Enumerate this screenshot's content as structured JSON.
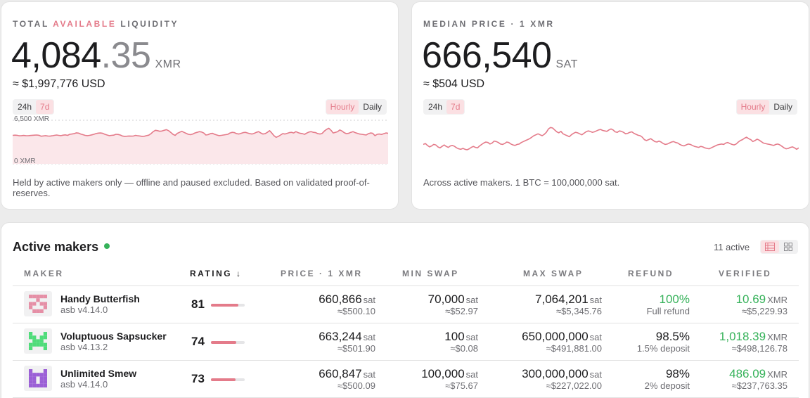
{
  "liquidity": {
    "label_pre": "TOTAL ",
    "label_hl": "AVAILABLE",
    "label_post": " LIQUIDITY",
    "int_part": "4,084",
    "dec_part": ".35",
    "unit": "XMR",
    "usd": "≈ $1,997,776 USD",
    "range_24h": "24h",
    "range_7d": "7d",
    "gran_hourly": "Hourly",
    "gran_daily": "Daily",
    "y_top": "6,500 XMR",
    "y_bottom": "0 XMR",
    "note": "Held by active makers only — offline and paused excluded. Based on validated proof-of-reserves.",
    "series": [
      4250,
      4280,
      4260,
      4180,
      4200,
      4240,
      4200,
      4190,
      4230,
      4260,
      4280,
      4300,
      4260,
      4120,
      4160,
      4200,
      4150,
      4130,
      4180,
      4250,
      4300,
      4250,
      4200,
      4280,
      4320,
      4250,
      4400,
      4450,
      4500,
      4620,
      4580,
      4450,
      4350,
      4250,
      4200,
      4250,
      4320,
      4400,
      4520,
      4580,
      4600,
      4550,
      4400,
      4300,
      4200,
      4250,
      4280,
      4400,
      4380,
      4300,
      4150,
      4100,
      4120,
      4150,
      4130,
      4150,
      4250,
      4180,
      4150,
      4100,
      4120,
      4200,
      4280,
      4500,
      4800,
      5000,
      4950,
      4850,
      4900,
      5000,
      5100,
      4950,
      4700,
      4400,
      4250,
      4550,
      4700,
      4850,
      4700,
      4550,
      4400,
      4350,
      4450,
      4600,
      4700,
      4800,
      4750,
      4600,
      4300,
      4350,
      4500,
      4550,
      4400,
      4300,
      4200,
      4250,
      4300,
      4350,
      4400,
      4600,
      4700,
      4650,
      4500,
      4450,
      4550,
      4650,
      4700,
      4600,
      4500,
      4450,
      4550,
      4700,
      4800,
      4600,
      4450,
      4500,
      4700,
      4950,
      4600,
      4200,
      3950,
      4100,
      4300,
      4500,
      4450,
      4550,
      4650,
      4700,
      4600,
      4800,
      4650,
      4550,
      4500,
      4400,
      4600,
      4750,
      4800,
      4700,
      4650,
      4500,
      4450,
      4550,
      4900,
      5150,
      5300,
      5000,
      4600,
      4700,
      4800,
      5050,
      4900,
      4650,
      4500,
      4550,
      4700,
      4800,
      4650,
      4550,
      4450,
      4400,
      4350,
      4300,
      4500,
      4600,
      4550,
      4200,
      4400,
      4450,
      4380,
      4500,
      4600,
      4550
    ]
  },
  "price": {
    "label": "MEDIAN PRICE · 1 XMR",
    "value": "666,540",
    "unit": "SAT",
    "usd": "≈ $504 USD",
    "range_24h": "24h",
    "range_7d": "7d",
    "gran_hourly": "Hourly",
    "gran_daily": "Daily",
    "note": "Across active makers. 1 BTC = 100,000,000 sat.",
    "series": [
      40,
      42,
      38,
      35,
      37,
      40,
      39,
      35,
      33,
      36,
      39,
      36,
      34,
      37,
      38,
      36,
      33,
      31,
      30,
      32,
      30,
      29,
      31,
      34,
      36,
      34,
      33,
      37,
      40,
      43,
      45,
      44,
      41,
      43,
      47,
      46,
      44,
      41,
      40,
      42,
      45,
      44,
      41,
      39,
      38,
      40,
      41,
      44,
      46,
      48,
      50,
      52,
      55,
      58,
      60,
      62,
      60,
      58,
      61,
      65,
      72,
      75,
      74,
      70,
      66,
      64,
      67,
      62,
      60,
      58,
      56,
      60,
      63,
      65,
      64,
      62,
      60,
      63,
      66,
      68,
      67,
      65,
      66,
      68,
      70,
      71,
      69,
      68,
      67,
      70,
      72,
      70,
      66,
      65,
      68,
      67,
      65,
      62,
      63,
      65,
      66,
      63,
      61,
      59,
      58,
      55,
      50,
      48,
      50,
      52,
      49,
      46,
      45,
      47,
      45,
      42,
      40,
      41,
      43,
      45,
      46,
      44,
      43,
      40,
      38,
      37,
      39,
      41,
      40,
      38,
      36,
      35,
      34,
      36,
      35,
      33,
      32,
      31,
      33,
      35,
      37,
      39,
      40,
      41,
      40,
      43,
      44,
      42,
      40,
      39,
      41,
      45,
      48,
      50,
      53,
      55,
      52,
      50,
      46,
      48,
      51,
      49,
      46,
      43,
      42,
      41,
      40,
      39,
      38,
      40,
      41,
      39,
      36,
      33,
      31,
      32,
      34,
      35,
      33,
      30,
      33
    ]
  },
  "makers": {
    "title": "Active makers",
    "count": "11 active",
    "columns": {
      "maker": "MAKER",
      "rating": "RATING",
      "sort_arrow": "↓",
      "price": "PRICE · 1 XMR",
      "min": "MIN SWAP",
      "max": "MAX SWAP",
      "refund": "REFUND",
      "verified": "VERIFIED"
    },
    "rows": [
      {
        "name": "Handy Butterfish",
        "version": "asb v4.14.0",
        "rating": "81",
        "rating_frac": 0.81,
        "avatar_color": "#e58fa6",
        "price": "660,866",
        "price_unit": "sat",
        "price_usd": "≈$500.10",
        "min": "70,000",
        "min_unit": "sat",
        "min_usd": "≈$52.97",
        "max": "7,064,201",
        "max_unit": "sat",
        "max_usd": "≈$5,345.76",
        "refund": "100%",
        "refund_note": "Full refund",
        "verified": "10.69",
        "verified_unit": "XMR",
        "verified_usd": "≈$5,229.93"
      },
      {
        "name": "Voluptuous Sapsucker",
        "version": "asb v4.13.2",
        "rating": "74",
        "rating_frac": 0.74,
        "avatar_color": "#4fdc7a",
        "price": "663,244",
        "price_unit": "sat",
        "price_usd": "≈$501.90",
        "min": "100",
        "min_unit": "sat",
        "min_usd": "≈$0.08",
        "max": "650,000,000",
        "max_unit": "sat",
        "max_usd": "≈$491,881.00",
        "refund": "98.5%",
        "refund_note": "1.5% deposit",
        "verified": "1,018.39",
        "verified_unit": "XMR",
        "verified_usd": "≈$498,126.78"
      },
      {
        "name": "Unlimited Smew",
        "version": "asb v4.14.0",
        "rating": "73",
        "rating_frac": 0.73,
        "avatar_color": "#9b5fd6",
        "price": "660,847",
        "price_unit": "sat",
        "price_usd": "≈$500.09",
        "min": "100,000",
        "min_unit": "sat",
        "min_usd": "≈$75.67",
        "max": "300,000,000",
        "max_unit": "sat",
        "max_usd": "≈$227,022.00",
        "refund": "98%",
        "refund_note": "2% deposit",
        "verified": "486.09",
        "verified_unit": "XMR",
        "verified_usd": "≈$237,763.35"
      }
    ]
  },
  "colors": {
    "accent": "#e47b8a",
    "accent_bg": "#fbe0e3",
    "positive": "#36b25a"
  }
}
